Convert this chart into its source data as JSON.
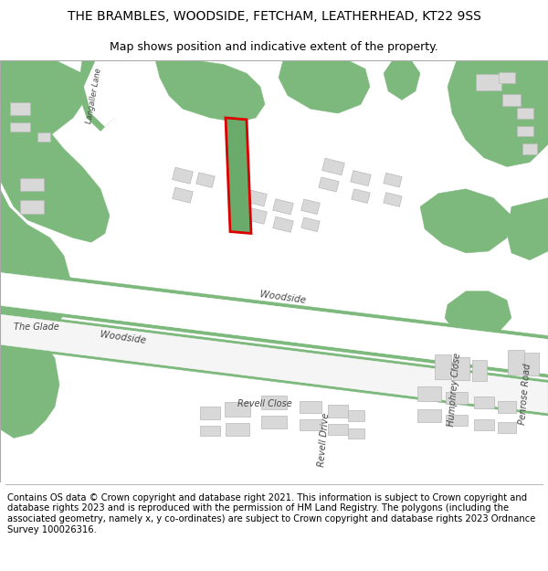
{
  "title": "THE BRAMBLES, WOODSIDE, FETCHAM, LEATHERHEAD, KT22 9SS",
  "subtitle": "Map shows position and indicative extent of the property.",
  "footer": "Contains OS data © Crown copyright and database right 2021. This information is subject to Crown copyright and database rights 2023 and is reproduced with the permission of HM Land Registry. The polygons (including the associated geometry, namely x, y co-ordinates) are subject to Crown copyright and database rights 2023 Ordnance Survey 100026316.",
  "bg_color": "#ffffff",
  "map_bg": "#f8f8f8",
  "green_color": "#7db87d",
  "building_color": "#d8d8d8",
  "building_outline": "#b8b8b8",
  "highlight_fill": "#6aaa6a",
  "highlight_outline": "#dd0000",
  "road_label_color": "#444444",
  "title_fontsize": 10,
  "subtitle_fontsize": 9,
  "footer_fontsize": 7.2
}
